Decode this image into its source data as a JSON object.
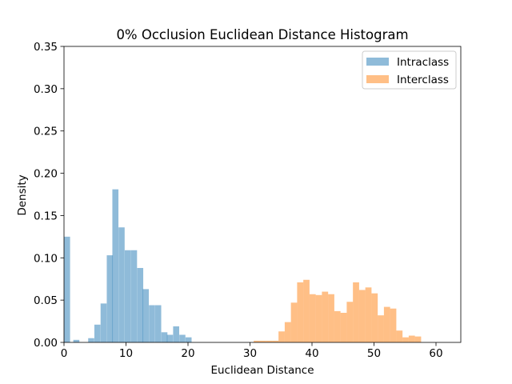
{
  "chart_data": {
    "type": "bar",
    "title": "0% Occlusion Euclidean Distance Histogram",
    "xlabel": "Euclidean Distance",
    "ylabel": "Density",
    "xlim": [
      0,
      64
    ],
    "ylim": [
      0,
      0.35
    ],
    "xticks": [
      "0",
      "10",
      "20",
      "30",
      "40",
      "50",
      "60"
    ],
    "yticks": [
      "0.00",
      "0.05",
      "0.10",
      "0.15",
      "0.20",
      "0.25",
      "0.30",
      "0.35"
    ],
    "grid": false,
    "legend_position": "top-right",
    "series": [
      {
        "name": "Intraclass",
        "color": "#1f77b4",
        "opacity": 0.5,
        "bin_width": 0.98,
        "bins": [
          {
            "x0": 0.0,
            "density": 0.125
          },
          {
            "x0": 1.5,
            "density": 0.003
          },
          {
            "x0": 3.9,
            "density": 0.005
          },
          {
            "x0": 4.9,
            "density": 0.021
          },
          {
            "x0": 5.9,
            "density": 0.046
          },
          {
            "x0": 6.9,
            "density": 0.103
          },
          {
            "x0": 7.8,
            "density": 0.181
          },
          {
            "x0": 8.8,
            "density": 0.136
          },
          {
            "x0": 9.8,
            "density": 0.109
          },
          {
            "x0": 10.8,
            "density": 0.109
          },
          {
            "x0": 11.8,
            "density": 0.088
          },
          {
            "x0": 12.7,
            "density": 0.063
          },
          {
            "x0": 13.7,
            "density": 0.044
          },
          {
            "x0": 14.7,
            "density": 0.044
          },
          {
            "x0": 15.7,
            "density": 0.012
          },
          {
            "x0": 16.6,
            "density": 0.009
          },
          {
            "x0": 17.6,
            "density": 0.019
          },
          {
            "x0": 18.6,
            "density": 0.009
          },
          {
            "x0": 19.6,
            "density": 0.006
          }
        ]
      },
      {
        "name": "Interclass",
        "color": "#ff7f0e",
        "opacity": 0.5,
        "bin_width": 1.0,
        "bins": [
          {
            "x0": 30.6,
            "density": 0.002
          },
          {
            "x0": 31.6,
            "density": 0.002
          },
          {
            "x0": 32.6,
            "density": 0.002
          },
          {
            "x0": 33.6,
            "density": 0.002
          },
          {
            "x0": 34.6,
            "density": 0.013
          },
          {
            "x0": 35.6,
            "density": 0.024
          },
          {
            "x0": 36.6,
            "density": 0.047
          },
          {
            "x0": 37.6,
            "density": 0.071
          },
          {
            "x0": 38.6,
            "density": 0.074
          },
          {
            "x0": 39.6,
            "density": 0.057
          },
          {
            "x0": 40.6,
            "density": 0.056
          },
          {
            "x0": 41.6,
            "density": 0.06
          },
          {
            "x0": 42.6,
            "density": 0.057
          },
          {
            "x0": 43.6,
            "density": 0.037
          },
          {
            "x0": 44.6,
            "density": 0.035
          },
          {
            "x0": 45.6,
            "density": 0.048
          },
          {
            "x0": 46.6,
            "density": 0.071
          },
          {
            "x0": 47.6,
            "density": 0.062
          },
          {
            "x0": 48.6,
            "density": 0.065
          },
          {
            "x0": 49.6,
            "density": 0.058
          },
          {
            "x0": 50.6,
            "density": 0.032
          },
          {
            "x0": 51.6,
            "density": 0.042
          },
          {
            "x0": 52.6,
            "density": 0.04
          },
          {
            "x0": 53.6,
            "density": 0.014
          },
          {
            "x0": 54.6,
            "density": 0.006
          },
          {
            "x0": 55.6,
            "density": 0.008
          },
          {
            "x0": 56.6,
            "density": 0.007
          }
        ]
      }
    ]
  }
}
